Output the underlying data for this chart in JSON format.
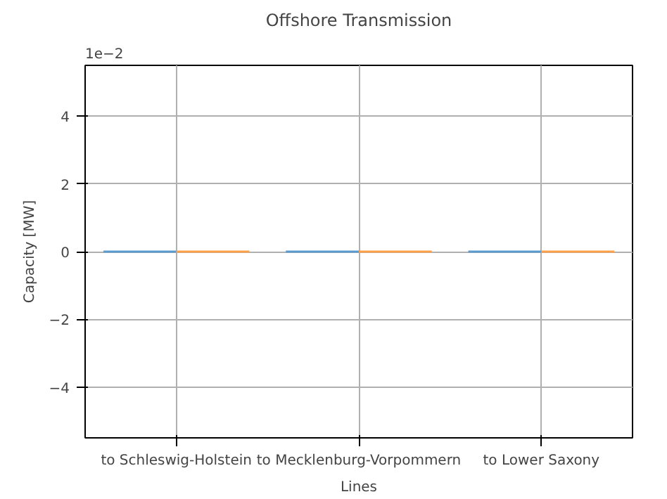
{
  "chart_data": {
    "type": "bar",
    "title": "Offshore Transmission",
    "xlabel": "Lines",
    "ylabel": "Capacity [MW]",
    "categories": [
      "to Schleswig-Holstein",
      "to Mecklenburg-Vorpommern",
      "to Lower Saxony"
    ],
    "series": [
      {
        "color": "#5b9bd0",
        "values": [
          0,
          0,
          0
        ]
      },
      {
        "color": "#ffa04a",
        "values": [
          0,
          0,
          0
        ]
      }
    ],
    "ylim": [
      -5.5,
      5.5
    ],
    "yticks": [
      {
        "value": -4,
        "label": "−4"
      },
      {
        "value": -2,
        "label": "−2"
      },
      0,
      2,
      4
    ],
    "annotations": [
      "1e−2"
    ],
    "grid": true
  }
}
